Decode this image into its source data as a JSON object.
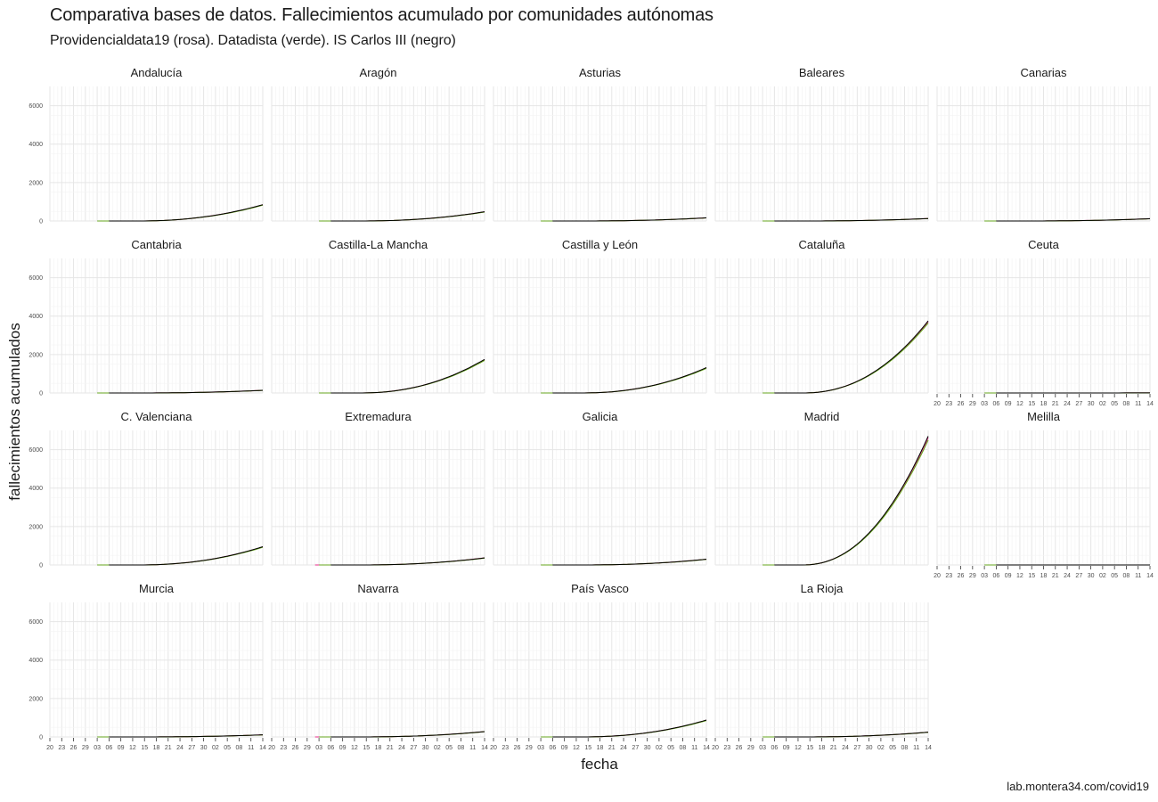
{
  "chart_data": {
    "type": "line",
    "title": "Comparativa bases de datos. Fallecimientos acumulado por comunidades autónomas",
    "subtitle": "Providencialdata19 (rosa). Datadista (verde). IS Carlos III (negro)",
    "xlabel": "fecha",
    "ylabel": "fallecimientos acumulados",
    "caption": "lab.montera34.com/covid19",
    "ylim": [
      0,
      7000
    ],
    "y_ticks": [
      0,
      2000,
      4000,
      6000
    ],
    "x_tick_labels": [
      "20",
      "23",
      "26",
      "29",
      "03",
      "06",
      "09",
      "12",
      "15",
      "18",
      "21",
      "24",
      "27",
      "30",
      "02",
      "05",
      "08",
      "11",
      "14"
    ],
    "x_dates": [
      "2020-02-20",
      "2020-04-14"
    ],
    "grid": true,
    "facets": [
      {
        "name": "Andalucía",
        "final": 850
      },
      {
        "name": "Aragón",
        "final": 480
      },
      {
        "name": "Asturias",
        "final": 165
      },
      {
        "name": "Baleares",
        "final": 130
      },
      {
        "name": "Canarias",
        "final": 120
      },
      {
        "name": "Cantabria",
        "final": 140
      },
      {
        "name": "Castilla-La Mancha",
        "final": 1750
      },
      {
        "name": "Castilla y León",
        "final": 1320
      },
      {
        "name": "Cataluña",
        "final": 3750
      },
      {
        "name": "Ceuta",
        "final": 4
      },
      {
        "name": "C. Valenciana",
        "final": 950
      },
      {
        "name": "Extremadura",
        "final": 370
      },
      {
        "name": "Galicia",
        "final": 300
      },
      {
        "name": "Madrid",
        "final": 6700
      },
      {
        "name": "Melilla",
        "final": 2
      },
      {
        "name": "Murcia",
        "final": 110
      },
      {
        "name": "Navarra",
        "final": 280
      },
      {
        "name": "País Vasco",
        "final": 880
      },
      {
        "name": "La Rioja",
        "final": 250
      }
    ],
    "series": [
      {
        "name": "Providencialdata19",
        "color": "#e7298a"
      },
      {
        "name": "Datadista",
        "color": "#66a61e"
      },
      {
        "name": "IS Carlos III",
        "color": "#000000"
      }
    ]
  }
}
